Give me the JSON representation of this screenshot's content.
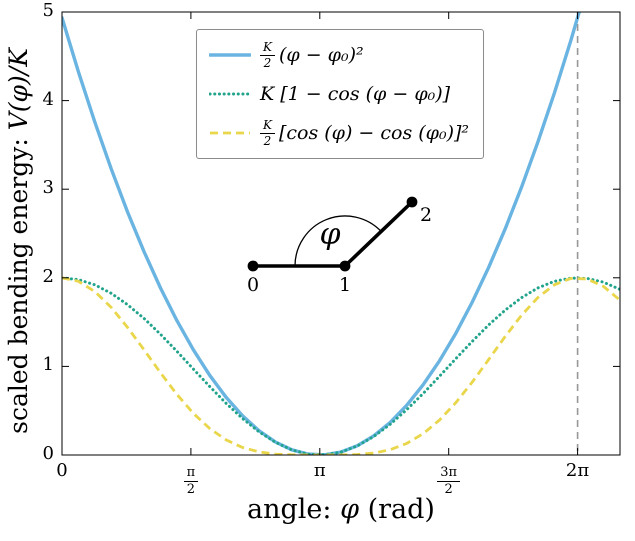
{
  "figure": {
    "xlabel": {
      "prefix": "angle:",
      "math": "φ",
      "suffix": "(rad)"
    },
    "ylabel": {
      "prefix": "scaled bending energy:",
      "math": "V(φ)/K"
    }
  },
  "legend": {
    "entries": [
      {
        "num": "K",
        "den": "2",
        "body": "(φ − φ₀)²"
      },
      {
        "body": "K [1 − cos (φ − φ₀)]"
      },
      {
        "num": "K",
        "den": "2",
        "body": "[cos (φ) − cos (φ₀)]²"
      }
    ]
  },
  "inset": {
    "labels": {
      "p0": "0",
      "p1": "1",
      "p2": "2",
      "angle": "φ"
    }
  },
  "chart_data": {
    "type": "line",
    "title": "",
    "xlabel": "angle: φ (rad)",
    "ylabel": "scaled bending energy: V(φ)/K",
    "xlim": [
      0,
      6.8
    ],
    "ylim": [
      0,
      5
    ],
    "grid": false,
    "legend_position": "upper center-left",
    "x_ticks": [
      {
        "label": "0",
        "value": 0
      },
      {
        "num": "π",
        "den": "2",
        "value": 1.5707963
      },
      {
        "label": "π",
        "value": 3.1415927
      },
      {
        "num": "3π",
        "den": "2",
        "value": 4.712389
      },
      {
        "label": "2π",
        "value": 6.2831853
      }
    ],
    "y_ticks": [
      {
        "label": "0",
        "value": 0
      },
      {
        "label": "1",
        "value": 1
      },
      {
        "label": "2",
        "value": 2
      },
      {
        "label": "3",
        "value": 3
      },
      {
        "label": "4",
        "value": 4
      },
      {
        "label": "5",
        "value": 5
      }
    ],
    "x": [
      0,
      0.2,
      0.4,
      0.6,
      0.8,
      1.0,
      1.2,
      1.4,
      1.6,
      1.8,
      2.0,
      2.2,
      2.4,
      2.6,
      2.8,
      3.0,
      3.2,
      3.4,
      3.6,
      3.8,
      4.0,
      4.2,
      4.4,
      4.6,
      4.8,
      5.0,
      5.2,
      5.4,
      5.6,
      5.8,
      6.0,
      6.2,
      6.4,
      6.6,
      6.8
    ],
    "series": [
      {
        "id": "harmonic",
        "name": "K/2 (φ − φ₀)²",
        "formula": "V(φ)/K = (1/2)(φ−φ₀)², φ₀ = π",
        "color": "#6ab4e2",
        "style": "solid",
        "values": [
          4.9348,
          4.3265,
          3.7582,
          3.2299,
          2.7415,
          2.2932,
          1.8849,
          1.5166,
          1.1883,
          0.9,
          0.6516,
          0.4433,
          0.275,
          0.1467,
          0.0583,
          0.01,
          0.0017,
          0.0334,
          0.1051,
          0.2167,
          0.3684,
          0.5601,
          0.7918,
          1.0635,
          1.3751,
          1.7268,
          2.1185,
          2.5502,
          3.0219,
          3.5336,
          4.0853,
          4.6769,
          5.3086,
          5.9804,
          6.6921
        ]
      },
      {
        "id": "cosine",
        "name": "K [1 − cos (φ − φ₀)]",
        "formula": "V(φ)/K = 1 − cos(φ−φ₀), φ₀ = π",
        "color": "#21a38c",
        "style": "dotted",
        "values": [
          2.0,
          1.9801,
          1.9211,
          1.8253,
          1.6967,
          1.5403,
          1.3624,
          1.17,
          0.9708,
          0.7728,
          0.5839,
          0.4115,
          0.2626,
          0.1431,
          0.0578,
          0.01,
          0.0017,
          0.0332,
          0.1032,
          0.209,
          0.3464,
          0.5097,
          0.6927,
          0.8878,
          1.0875,
          1.2837,
          1.4685,
          1.6347,
          1.7756,
          1.8855,
          1.9602,
          1.9965,
          1.9932,
          1.9502,
          1.8694
        ]
      },
      {
        "id": "cos-squared",
        "name": "K/2 [cos (φ) − cos (φ₀)]²",
        "formula": "V(φ)/K = (1/2)(cos φ − cos φ₀)², φ₀ = π",
        "color": "#e9d64a",
        "style": "dashed",
        "values": [
          2.0,
          1.9604,
          1.8453,
          1.6659,
          1.4394,
          1.1863,
          0.9281,
          0.6845,
          0.4712,
          0.2986,
          0.1705,
          0.0847,
          0.0345,
          0.0102,
          0.0017,
          0.0001,
          0.0,
          0.0006,
          0.0053,
          0.0218,
          0.06,
          0.1299,
          0.2399,
          0.3941,
          0.5913,
          0.8239,
          1.0782,
          1.3361,
          1.5764,
          1.7775,
          1.9212,
          1.993,
          1.9864,
          1.9016,
          1.7473
        ]
      }
    ],
    "annotations": [
      {
        "type": "vline",
        "x": 6.2831853,
        "style": "dashed",
        "color": "#979797"
      }
    ],
    "axis_color": "#000000"
  }
}
